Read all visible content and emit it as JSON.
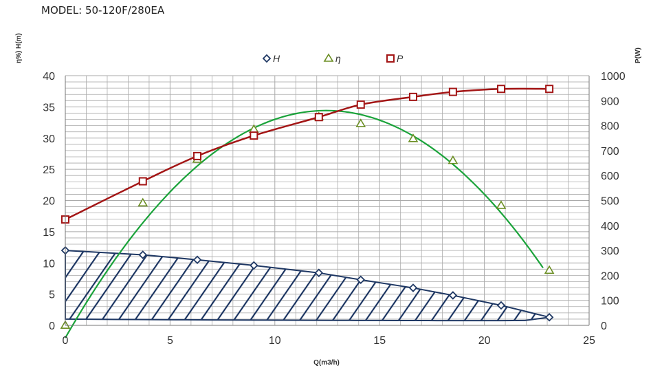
{
  "header": {
    "model": "MODEL: 50-120F/280EA"
  },
  "chart_data": {
    "type": "line",
    "title": "MODEL: 50-120F/280EA",
    "xlabel": "Q(m3/h)",
    "ylabel_left": "η%) H(m)",
    "ylabel_right": "P(W)",
    "xlim": [
      0,
      25
    ],
    "ylim_left": [
      0,
      40
    ],
    "ylim_right": [
      0,
      1000
    ],
    "x_ticks": [
      "0",
      "5",
      "10",
      "15",
      "20",
      "25"
    ],
    "y_left_ticks": [
      "0",
      "5",
      "10",
      "15",
      "20",
      "25",
      "30",
      "35",
      "40"
    ],
    "y_right_ticks": [
      "0",
      "100",
      "200",
      "300",
      "400",
      "500",
      "600",
      "700",
      "800",
      "900",
      "1000"
    ],
    "legend_position": "top-center",
    "grid": true,
    "series": [
      {
        "name": "H",
        "axis": "left",
        "marker": "diamond",
        "color": "#1f3864",
        "x": [
          0,
          3.7,
          6.3,
          9.0,
          12.1,
          14.1,
          16.6,
          18.5,
          20.8,
          23.1
        ],
        "y": [
          12.0,
          11.3,
          10.5,
          9.6,
          8.4,
          7.3,
          6.0,
          4.8,
          3.2,
          1.3
        ]
      },
      {
        "name": "η",
        "axis": "left",
        "marker": "triangle",
        "color": "#6b8e23",
        "x": [
          0,
          3.7,
          6.3,
          9.0,
          12.1,
          14.1,
          16.6,
          18.5,
          20.8,
          23.1
        ],
        "y": [
          0,
          19.6,
          26.6,
          31.4,
          33.4,
          32.3,
          29.9,
          26.4,
          19.2,
          8.8
        ]
      },
      {
        "name": "P",
        "axis": "right",
        "marker": "square",
        "color": "#a31515",
        "x": [
          0,
          3.7,
          6.3,
          9.0,
          12.1,
          14.1,
          16.6,
          18.5,
          20.8,
          23.1
        ],
        "y": [
          424,
          577,
          678,
          760,
          834,
          884,
          915,
          935,
          947,
          947
        ]
      }
    ],
    "colors": {
      "h_curve": "#1f3864",
      "eta_curve": "#1aa33a",
      "p_curve": "#a31515",
      "grid": "#aaaaaa"
    }
  }
}
